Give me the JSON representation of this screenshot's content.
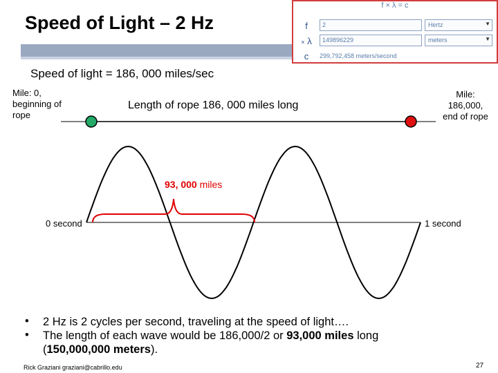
{
  "slide": {
    "title": "Speed of Light – 2 Hz",
    "subtitle": "Speed of light = 186, 000 miles/sec",
    "start_label": [
      "Mile: 0,",
      "beginning of",
      "rope"
    ],
    "end_label": [
      "Mile:",
      "186,000,",
      "end of rope"
    ],
    "rope_label": "Length of rope 186, 000 miles long",
    "half_label_num": "93, 000",
    "half_label_unit": " miles",
    "left_axis_label": "0 second",
    "right_axis_label": "1 second",
    "bullet_glyph": "•",
    "bullet1": "2 Hz is 2 cycles per second, traveling at the speed of light….",
    "bullet2_pre": "The length of each wave would be 186,000/2 or ",
    "bullet2_bold": "93,000 miles",
    "bullet2_post": " long",
    "bullet2_line2_pre": "(",
    "bullet2_line2_bold": "150,000,000 meters",
    "bullet2_line2_post": ").",
    "footer": "Rick Graziani  graziani@cabrillo.edu",
    "page_number": "27"
  },
  "calculator": {
    "header": "f × λ = c",
    "f_symbol": "f",
    "f_value": "2",
    "f_unit": "Hertz",
    "lambda_symbol": "λ",
    "lambda_prefix": "×",
    "lambda_value": "149896229",
    "lambda_unit": "meters",
    "c_symbol": "c",
    "c_value": "299,792,458 meters/second",
    "dropdown_arrow": "▼"
  },
  "colors": {
    "start_marker": "#22aa66",
    "end_marker": "#e01010",
    "brace": "#e00000",
    "half_label": "#e00000",
    "wave": "#000000",
    "calc_border": "#d23c3c"
  }
}
